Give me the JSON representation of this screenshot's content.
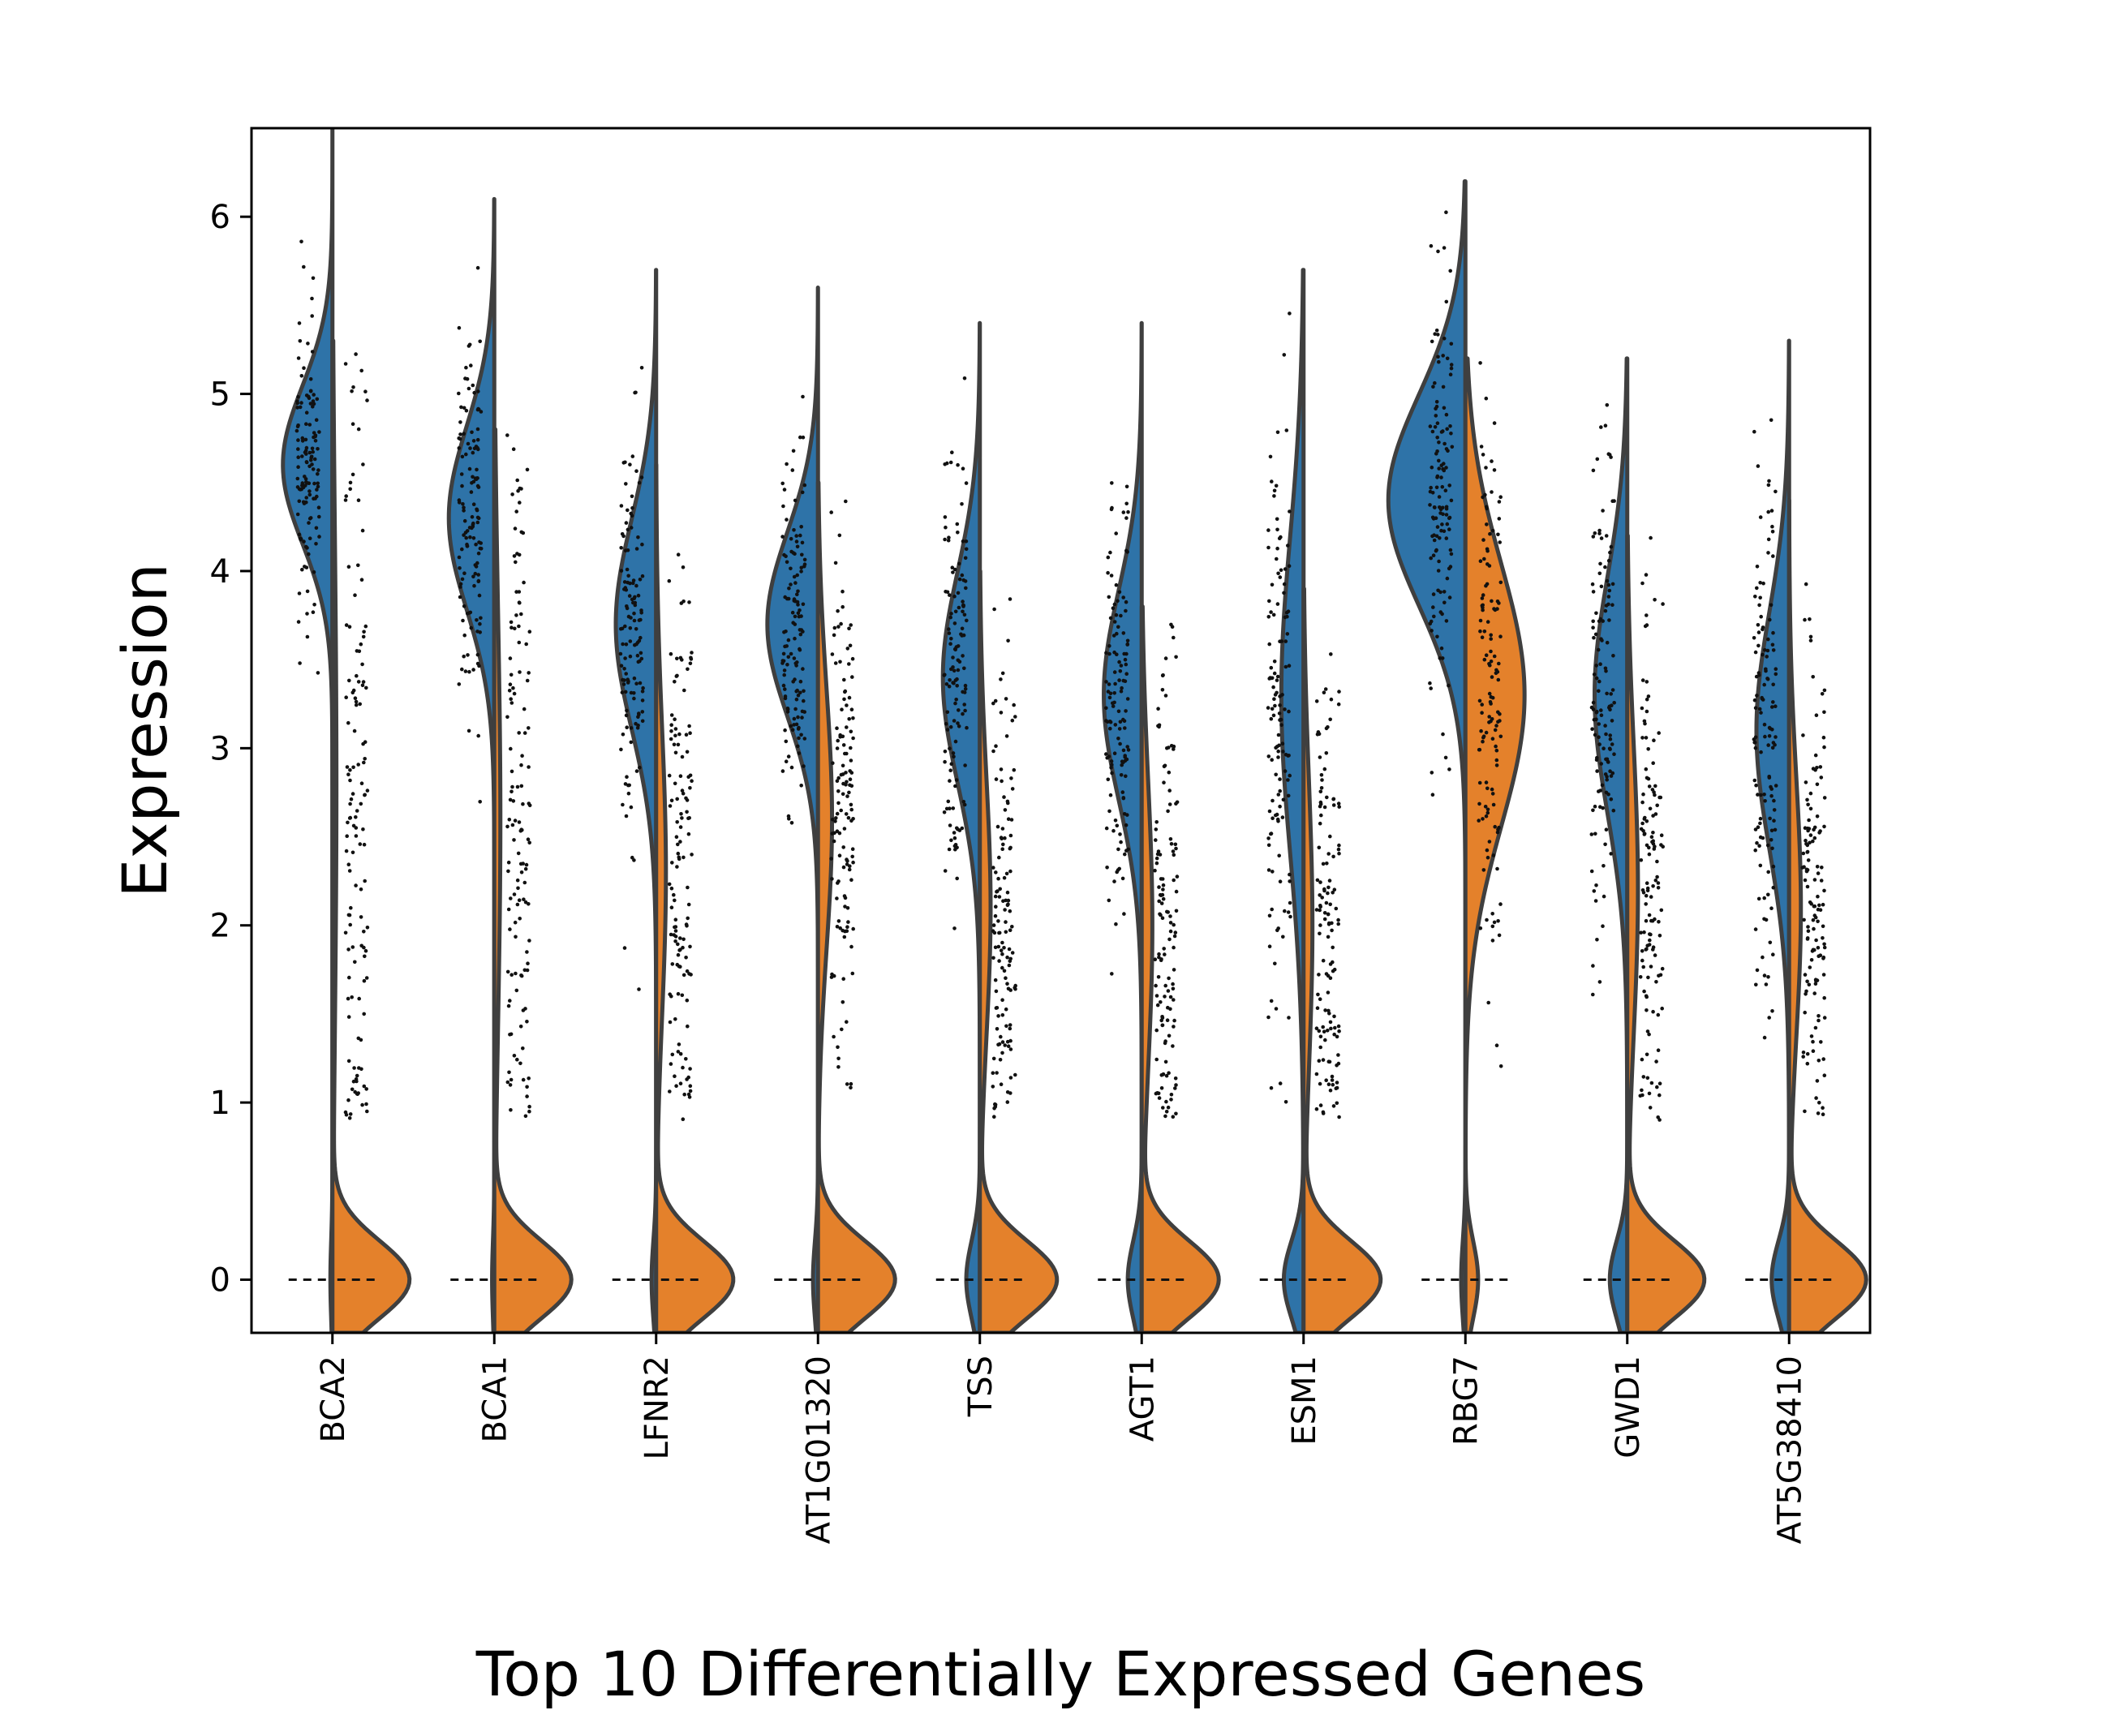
{
  "chart_data": {
    "type": "violin",
    "split": true,
    "title": "",
    "xlabel": "Top 10 Differentially Expressed Genes",
    "ylabel": "Expression",
    "ylim": [
      -0.3,
      6.5
    ],
    "yticks": [
      0,
      1,
      2,
      3,
      4,
      5,
      6
    ],
    "grid": false,
    "legend": "none",
    "colors": {
      "left": "#2e73a8",
      "right": "#e4812b",
      "outline": "#3f3f3f",
      "points": "#111111"
    },
    "categories": [
      "BCA2",
      "BCA1",
      "LFNR2",
      "AT1G01320",
      "TSS",
      "AGT1",
      "ESM1",
      "RBG7",
      "GWD1",
      "AT5G38410"
    ],
    "series": [
      {
        "side": "left",
        "genes": [
          {
            "gene": "BCA2",
            "min": 1.9,
            "max": 6.6,
            "median": 4.6,
            "q1": 4.3,
            "q3": 4.9,
            "zero_fraction": 0.02
          },
          {
            "gene": "BCA1",
            "min": 1.3,
            "max": 6.1,
            "median": 4.3,
            "q1": 3.9,
            "q3": 4.6,
            "zero_fraction": 0.02
          },
          {
            "gene": "LFNR2",
            "min": 1.5,
            "max": 5.7,
            "median": 3.7,
            "q1": 3.2,
            "q3": 4.0,
            "zero_fraction": 0.04
          },
          {
            "gene": "AT1G01320",
            "min": 1.6,
            "max": 5.6,
            "median": 3.7,
            "q1": 3.3,
            "q3": 4.0,
            "zero_fraction": 0.04
          },
          {
            "gene": "TSS",
            "min": 1.4,
            "max": 5.4,
            "median": 3.4,
            "q1": 2.9,
            "q3": 3.7,
            "zero_fraction": 0.12
          },
          {
            "gene": "AGT1",
            "min": 1.5,
            "max": 5.4,
            "median": 3.3,
            "q1": 2.8,
            "q3": 3.6,
            "zero_fraction": 0.12
          },
          {
            "gene": "ESM1",
            "min": 1.0,
            "max": 5.7,
            "median": 3.3,
            "q1": 2.6,
            "q3": 3.8,
            "zero_fraction": 0.18
          },
          {
            "gene": "RBG7",
            "min": 1.8,
            "max": 6.2,
            "median": 4.4,
            "q1": 4.0,
            "q3": 4.8,
            "zero_fraction": 0.02
          },
          {
            "gene": "GWD1",
            "min": 1.5,
            "max": 5.2,
            "median": 3.3,
            "q1": 2.8,
            "q3": 3.7,
            "zero_fraction": 0.15
          },
          {
            "gene": "AT5G38410",
            "min": 1.3,
            "max": 5.3,
            "median": 3.1,
            "q1": 2.6,
            "q3": 3.5,
            "zero_fraction": 0.15
          }
        ]
      },
      {
        "side": "right",
        "genes": [
          {
            "gene": "BCA2",
            "min": 0.9,
            "max": 5.3,
            "median": 2.8,
            "q1": 1.8,
            "q3": 3.7,
            "zero_fraction": 0.75
          },
          {
            "gene": "BCA1",
            "min": 0.9,
            "max": 4.8,
            "median": 2.6,
            "q1": 1.9,
            "q3": 3.5,
            "zero_fraction": 0.7
          },
          {
            "gene": "LFNR2",
            "min": 0.9,
            "max": 4.6,
            "median": 2.3,
            "q1": 1.7,
            "q3": 2.8,
            "zero_fraction": 0.68
          },
          {
            "gene": "AT1G01320",
            "min": 1.0,
            "max": 4.5,
            "median": 2.6,
            "q1": 2.1,
            "q3": 3.1,
            "zero_fraction": 0.62
          },
          {
            "gene": "TSS",
            "min": 0.9,
            "max": 4.0,
            "median": 2.1,
            "q1": 1.6,
            "q3": 2.6,
            "zero_fraction": 0.68
          },
          {
            "gene": "AGT1",
            "min": 0.9,
            "max": 3.8,
            "median": 2.0,
            "q1": 1.5,
            "q3": 2.6,
            "zero_fraction": 0.66
          },
          {
            "gene": "ESM1",
            "min": 0.9,
            "max": 3.9,
            "median": 2.0,
            "q1": 1.5,
            "q3": 2.6,
            "zero_fraction": 0.7
          },
          {
            "gene": "RBG7",
            "min": 1.0,
            "max": 5.2,
            "median": 3.3,
            "q1": 2.8,
            "q3": 3.8,
            "zero_fraction": 0.06
          },
          {
            "gene": "GWD1",
            "min": 0.9,
            "max": 4.2,
            "median": 2.2,
            "q1": 1.7,
            "q3": 2.8,
            "zero_fraction": 0.66
          },
          {
            "gene": "AT5G38410",
            "min": 0.9,
            "max": 4.4,
            "median": 2.1,
            "q1": 1.6,
            "q3": 2.6,
            "zero_fraction": 0.66
          }
        ]
      }
    ]
  }
}
